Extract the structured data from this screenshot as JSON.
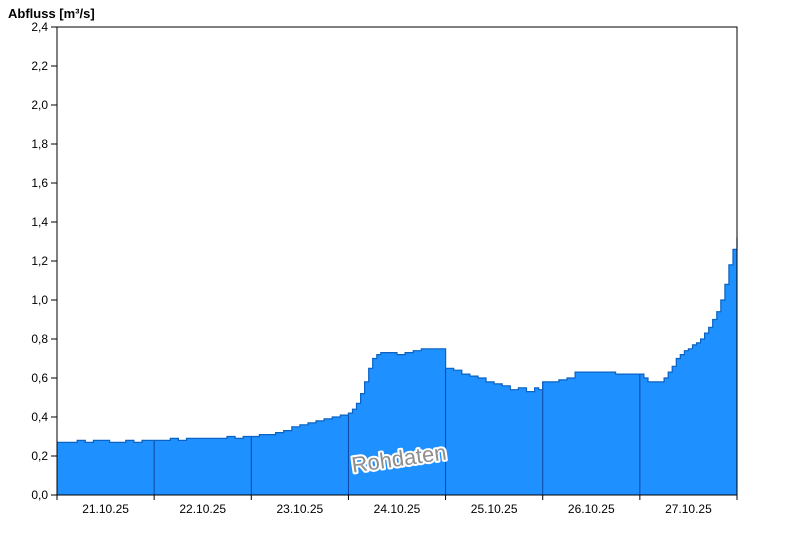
{
  "header": {
    "title": "Abfluss [m³/s]"
  },
  "watermark": {
    "text": "Rohdaten"
  },
  "colors": {
    "background": "#FFFFFF",
    "area_fill": "#1E90FF",
    "area_stroke": "#0A62C2",
    "day_boundary_line": "#0D47A1",
    "axis": "#000000",
    "watermark_fill": "#8F8F8F",
    "watermark_halo": "#FFFFFF"
  },
  "chart_data": {
    "type": "area",
    "title": "Abfluss [m³/s]",
    "ylabel": "Abfluss [m³/s]",
    "xlabel": "",
    "ylim": [
      0.0,
      2.4
    ],
    "ytick_step": 0.2,
    "ytick_labels": [
      "0,0",
      "0,2",
      "0,4",
      "0,6",
      "0,8",
      "1,0",
      "1,2",
      "1,4",
      "1,6",
      "1,8",
      "2,0",
      "2,2",
      "2,4"
    ],
    "grid": false,
    "legend_position": "none",
    "annotation": "Rohdaten",
    "x_axis": {
      "unit": "hours",
      "hours_range": [
        0,
        168
      ],
      "day_labels": [
        "21.10.25",
        "22.10.25",
        "23.10.25",
        "24.10.25",
        "25.10.25",
        "26.10.25",
        "27.10.25"
      ],
      "day_boundaries_hours": [
        24,
        48,
        72,
        96,
        120,
        144
      ]
    },
    "series": [
      {
        "name": "Rohdaten",
        "style": "step-area",
        "points": [
          [
            0,
            0.27
          ],
          [
            3,
            0.27
          ],
          [
            5,
            0.28
          ],
          [
            7,
            0.27
          ],
          [
            9,
            0.28
          ],
          [
            11,
            0.28
          ],
          [
            13,
            0.27
          ],
          [
            15,
            0.27
          ],
          [
            17,
            0.28
          ],
          [
            19,
            0.27
          ],
          [
            21,
            0.28
          ],
          [
            23,
            0.28
          ],
          [
            24,
            0.28
          ],
          [
            26,
            0.28
          ],
          [
            28,
            0.29
          ],
          [
            30,
            0.28
          ],
          [
            32,
            0.29
          ],
          [
            34,
            0.29
          ],
          [
            36,
            0.29
          ],
          [
            38,
            0.29
          ],
          [
            40,
            0.29
          ],
          [
            42,
            0.3
          ],
          [
            44,
            0.29
          ],
          [
            46,
            0.3
          ],
          [
            48,
            0.3
          ],
          [
            50,
            0.31
          ],
          [
            52,
            0.31
          ],
          [
            54,
            0.32
          ],
          [
            56,
            0.33
          ],
          [
            58,
            0.35
          ],
          [
            60,
            0.36
          ],
          [
            62,
            0.37
          ],
          [
            64,
            0.38
          ],
          [
            66,
            0.39
          ],
          [
            68,
            0.4
          ],
          [
            70,
            0.41
          ],
          [
            72,
            0.42
          ],
          [
            73,
            0.44
          ],
          [
            74,
            0.47
          ],
          [
            75,
            0.52
          ],
          [
            76,
            0.58
          ],
          [
            77,
            0.65
          ],
          [
            78,
            0.7
          ],
          [
            79,
            0.72
          ],
          [
            80,
            0.73
          ],
          [
            82,
            0.73
          ],
          [
            84,
            0.72
          ],
          [
            86,
            0.73
          ],
          [
            88,
            0.74
          ],
          [
            90,
            0.75
          ],
          [
            93,
            0.75
          ],
          [
            96,
            0.65
          ],
          [
            98,
            0.64
          ],
          [
            100,
            0.62
          ],
          [
            102,
            0.61
          ],
          [
            104,
            0.6
          ],
          [
            106,
            0.58
          ],
          [
            108,
            0.57
          ],
          [
            110,
            0.56
          ],
          [
            112,
            0.54
          ],
          [
            114,
            0.55
          ],
          [
            116,
            0.53
          ],
          [
            118,
            0.55
          ],
          [
            119,
            0.54
          ],
          [
            120,
            0.58
          ],
          [
            122,
            0.58
          ],
          [
            124,
            0.59
          ],
          [
            126,
            0.6
          ],
          [
            128,
            0.63
          ],
          [
            132,
            0.63
          ],
          [
            136,
            0.63
          ],
          [
            138,
            0.62
          ],
          [
            142,
            0.62
          ],
          [
            144,
            0.62
          ],
          [
            145,
            0.6
          ],
          [
            146,
            0.58
          ],
          [
            148,
            0.58
          ],
          [
            150,
            0.6
          ],
          [
            151,
            0.63
          ],
          [
            152,
            0.66
          ],
          [
            153,
            0.7
          ],
          [
            154,
            0.72
          ],
          [
            155,
            0.74
          ],
          [
            156,
            0.75
          ],
          [
            157,
            0.77
          ],
          [
            158,
            0.78
          ],
          [
            159,
            0.8
          ],
          [
            160,
            0.83
          ],
          [
            161,
            0.86
          ],
          [
            162,
            0.9
          ],
          [
            163,
            0.94
          ],
          [
            164,
            1.0
          ],
          [
            165,
            1.08
          ],
          [
            166,
            1.18
          ],
          [
            167,
            1.26
          ],
          [
            168,
            1.32
          ]
        ]
      }
    ]
  }
}
